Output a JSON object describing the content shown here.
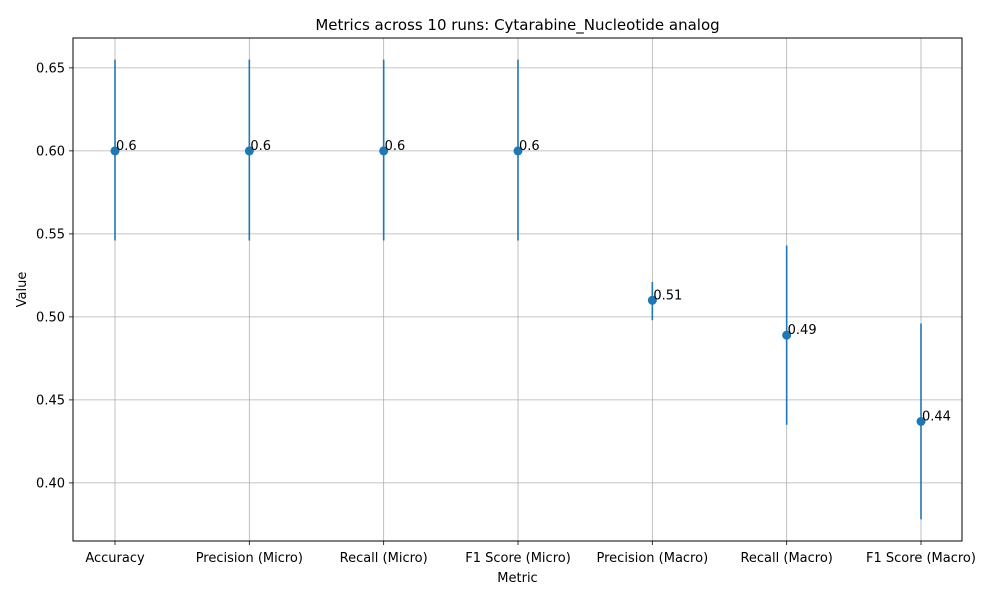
{
  "chart_data": {
    "type": "scatter",
    "title": "Metrics across 10 runs: Cytarabine_Nucleotide analog",
    "xlabel": "Metric",
    "ylabel": "Value",
    "categories": [
      "Accuracy",
      "Precision (Micro)",
      "Recall (Micro)",
      "F1 Score (Micro)",
      "Precision (Macro)",
      "Recall (Macro)",
      "F1 Score (Macro)"
    ],
    "values": [
      0.6,
      0.6,
      0.6,
      0.6,
      0.51,
      0.489,
      0.437
    ],
    "error_low": [
      0.546,
      0.546,
      0.546,
      0.546,
      0.498,
      0.435,
      0.378
    ],
    "error_high": [
      0.655,
      0.655,
      0.655,
      0.655,
      0.521,
      0.543,
      0.496
    ],
    "data_labels": [
      "0.6",
      "0.6",
      "0.6",
      "0.6",
      "0.51",
      "0.49",
      "0.44"
    ],
    "yticks": [
      "0.40",
      "0.45",
      "0.50",
      "0.55",
      "0.60",
      "0.65"
    ],
    "ylim": [
      0.365,
      0.668
    ],
    "grid": true,
    "marker_color": "#1f77b4"
  }
}
